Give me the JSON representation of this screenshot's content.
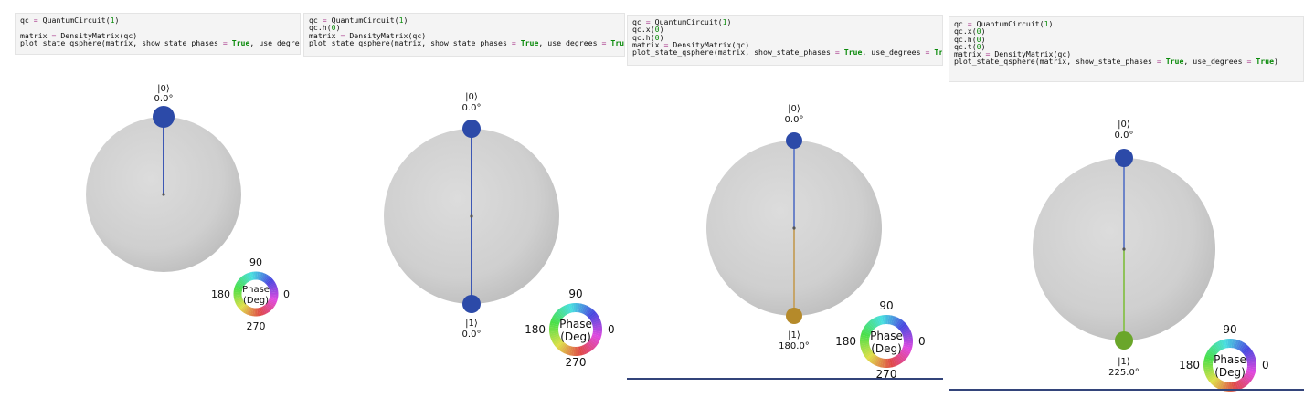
{
  "panels": [
    {
      "id": "panel-1",
      "code_lines": [
        "qc = QuantumCircuit(1)",
        "",
        "matrix = DensityMatrix(qc)",
        "plot_state_qsphere(matrix, show_state_phases = True, use_degrees = True)"
      ],
      "states": [
        {
          "ket": "|0⟩",
          "phase": "0.0°",
          "color": "#2c4aa8"
        }
      ],
      "wheel": {
        "title_line1": "Phase",
        "title_line2": "(Deg)",
        "label_90": "90",
        "label_180": "180",
        "label_0": "0",
        "label_270": "270"
      }
    },
    {
      "id": "panel-2",
      "code_lines": [
        "qc = QuantumCircuit(1)",
        "qc.h(0)",
        "matrix = DensityMatrix(qc)",
        "plot_state_qsphere(matrix, show_state_phases = True, use_degrees = True)"
      ],
      "states": [
        {
          "ket": "|0⟩",
          "phase": "0.0°",
          "color": "#2c4aa8"
        },
        {
          "ket": "|1⟩",
          "phase": "0.0°",
          "color": "#2c4aa8"
        }
      ],
      "wheel": {
        "title_line1": "Phase",
        "title_line2": "(Deg)",
        "label_90": "90",
        "label_180": "180",
        "label_0": "0",
        "label_270": "270"
      }
    },
    {
      "id": "panel-3",
      "code_lines": [
        "qc = QuantumCircuit(1)",
        "qc.x(0)",
        "qc.h(0)",
        "matrix = DensityMatrix(qc)",
        "plot_state_qsphere(matrix, show_state_phases = True, use_degrees = True)"
      ],
      "states": [
        {
          "ket": "|0⟩",
          "phase": "0.0°",
          "color": "#2c4aa8"
        },
        {
          "ket": "|1⟩",
          "phase": "180.0°",
          "color": "#b58a2a"
        }
      ],
      "wheel": {
        "title_line1": "Phase",
        "title_line2": "(Deg)",
        "label_90": "90",
        "label_180": "180",
        "label_0": "0",
        "label_270": "270"
      }
    },
    {
      "id": "panel-4",
      "code_lines": [
        "qc = QuantumCircuit(1)",
        "qc.x(0)",
        "qc.h(0)",
        "qc.t(0)",
        "matrix = DensityMatrix(qc)",
        "plot_state_qsphere(matrix, show_state_phases = True, use_degrees = True)"
      ],
      "states": [
        {
          "ket": "|0⟩",
          "phase": "0.0°",
          "color": "#2c4aa8"
        },
        {
          "ket": "|1⟩",
          "phase": "225.0°",
          "color": "#6aa62a"
        }
      ],
      "wheel": {
        "title_line1": "Phase",
        "title_line2": "(Deg)",
        "label_90": "90",
        "label_180": "180",
        "label_0": "0",
        "label_270": "270"
      }
    }
  ]
}
